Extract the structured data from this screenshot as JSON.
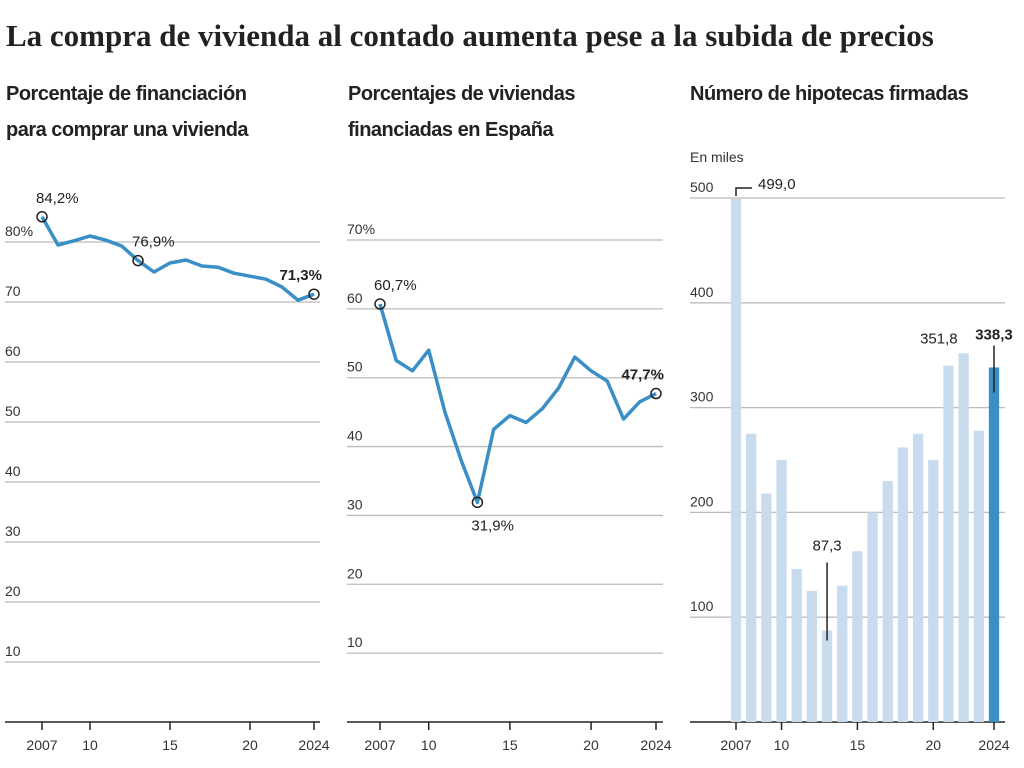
{
  "title": "La compra de vivienda al contado aumenta pese a la subida de precios",
  "chart_data": [
    {
      "type": "line",
      "title": [
        "Porcentaje de financiación",
        "para comprar una vivienda"
      ],
      "x": [
        2007,
        2008,
        2009,
        2010,
        2011,
        2012,
        2013,
        2014,
        2015,
        2016,
        2017,
        2018,
        2019,
        2020,
        2021,
        2022,
        2023,
        2024
      ],
      "values": [
        84.2,
        79.5,
        80.2,
        81,
        80.3,
        79.3,
        76.9,
        75,
        76.5,
        77,
        76,
        75.8,
        74.8,
        74.3,
        73.8,
        72.5,
        70.3,
        71.3
      ],
      "value_labels": [
        "84,2%",
        null,
        null,
        null,
        null,
        null,
        "76,9%",
        null,
        null,
        null,
        null,
        null,
        null,
        null,
        null,
        null,
        null,
        "71,3%"
      ],
      "color": "#3a8fc6",
      "xlim": [
        2007,
        2024
      ],
      "xticks": [
        2007,
        {
          "value": 2010,
          "label": "10"
        },
        {
          "value": 2015,
          "label": "15"
        },
        {
          "value": 2020,
          "label": "20"
        },
        2024
      ],
      "ylim": [
        0,
        90
      ],
      "yticks": [
        {
          "value": 80,
          "label": "80%"
        },
        70,
        60,
        50,
        40,
        30,
        20,
        10
      ],
      "grid": true
    },
    {
      "type": "line",
      "title": [
        "Porcentajes de viviendas",
        "financiadas en España"
      ],
      "x": [
        2007,
        2008,
        2009,
        2010,
        2011,
        2012,
        2013,
        2014,
        2015,
        2016,
        2017,
        2018,
        2019,
        2020,
        2021,
        2022,
        2023,
        2024
      ],
      "values": [
        60.7,
        52.5,
        51,
        54,
        45,
        38,
        31.9,
        42.5,
        44.5,
        43.5,
        45.5,
        48.5,
        53,
        51,
        49.5,
        44,
        46.5,
        47.7
      ],
      "value_labels": [
        "60,7%",
        null,
        null,
        null,
        null,
        null,
        "31,9%",
        null,
        null,
        null,
        null,
        null,
        null,
        null,
        null,
        null,
        null,
        "47,7%"
      ],
      "color": "#3a8fc6",
      "xlim": [
        2007,
        2024
      ],
      "xticks": [
        2007,
        {
          "value": 2010,
          "label": "10"
        },
        {
          "value": 2015,
          "label": "15"
        },
        {
          "value": 2020,
          "label": "20"
        },
        2024
      ],
      "ylim": [
        0,
        70
      ],
      "yticks": [
        {
          "value": 70,
          "label": "70%"
        },
        60,
        50,
        40,
        30,
        20,
        10
      ],
      "grid": true
    },
    {
      "type": "bar",
      "title": [
        "Número de hipotecas firmadas"
      ],
      "subtitle": "En miles",
      "x": [
        2007,
        2008,
        2009,
        2010,
        2011,
        2012,
        2013,
        2014,
        2015,
        2016,
        2017,
        2018,
        2019,
        2020,
        2021,
        2022,
        2023,
        2024
      ],
      "values": [
        499.0,
        275,
        218,
        250,
        146,
        125,
        87.3,
        130,
        163,
        200,
        230,
        262,
        275,
        250,
        340,
        351.8,
        278,
        338.3
      ],
      "value_labels": [
        "499,0",
        null,
        null,
        null,
        null,
        null,
        "87,3",
        null,
        null,
        null,
        null,
        null,
        null,
        null,
        null,
        "351,8",
        null,
        "338,3"
      ],
      "colors": [
        "#c9dcee",
        "#c9dcee",
        "#c9dcee",
        "#c9dcee",
        "#c9dcee",
        "#c9dcee",
        "#c9dcee",
        "#c9dcee",
        "#c9dcee",
        "#c9dcee",
        "#c9dcee",
        "#c9dcee",
        "#c9dcee",
        "#c9dcee",
        "#c9dcee",
        "#c9dcee",
        "#c9dcee",
        "#3a8fc6"
      ],
      "xlim": [
        2007,
        2024
      ],
      "xticks": [
        2007,
        {
          "value": 2010,
          "label": "10"
        },
        {
          "value": 2015,
          "label": "15"
        },
        {
          "value": 2020,
          "label": "20"
        },
        2024
      ],
      "ylim": [
        0,
        500
      ],
      "yticks": [
        500,
        400,
        300,
        200,
        100
      ],
      "grid": true
    }
  ]
}
